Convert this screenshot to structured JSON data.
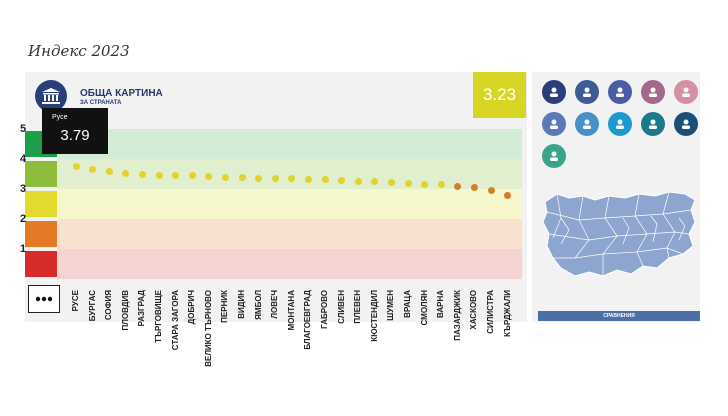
{
  "page": {
    "title": "Индекс 2023"
  },
  "header": {
    "title": "ОБЩА КАРТИНА",
    "subtitle": "ЗА СТРАНАТА",
    "score": "3.23"
  },
  "tooltip": {
    "label": "Русе",
    "value": "3.79"
  },
  "axis": {
    "ticks": [
      "5",
      "4",
      "3",
      "2",
      "1"
    ],
    "colors": [
      "#1f9e4a",
      "#8dbd3b",
      "#e2da2c",
      "#e37a25",
      "#d82c2c"
    ],
    "band_colors": [
      "#d4ecd6",
      "#e1efcf",
      "#f7f7cd",
      "#f9e1cf",
      "#f6d3d3"
    ]
  },
  "chart_data": {
    "type": "scatter",
    "title": "ОБЩА КАРТИНА",
    "ylim": [
      0,
      5
    ],
    "categories": [
      "РУСЕ",
      "БУРГАС",
      "СОФИЯ",
      "ПЛОВДИВ",
      "РАЗГРАД",
      "ТЪРГОВИЩЕ",
      "СТАРА ЗАГОРА",
      "ДОБРИЧ",
      "ВЕЛИКО ТЪРНОВО",
      "ПЕРНИК",
      "ВИДИН",
      "ЯМБОЛ",
      "ЛОВЕЧ",
      "МОНТАНА",
      "БЛАГОЕВГРАД",
      "ГАБРОВО",
      "СЛИВЕН",
      "ПЛЕВЕН",
      "КЮСТЕНДИЛ",
      "ШУМЕН",
      "ВРАЦА",
      "СМОЛЯН",
      "ВАРНА",
      "ПАЗАРДЖИК",
      "ХАСКОВО",
      "СИЛИСТРА",
      "КЪРДЖАЛИ"
    ],
    "values": [
      3.79,
      3.69,
      3.62,
      3.56,
      3.53,
      3.49,
      3.48,
      3.47,
      3.44,
      3.42,
      3.41,
      3.39,
      3.38,
      3.37,
      3.35,
      3.34,
      3.31,
      3.3,
      3.28,
      3.26,
      3.22,
      3.2,
      3.19,
      3.12,
      3.1,
      2.98,
      2.83
    ]
  },
  "more_button": {
    "icon": "ellipsis-icon"
  },
  "categories_panel": {
    "icons": [
      {
        "name": "institution-icon",
        "color": "#2a3f7a"
      },
      {
        "name": "people-icon",
        "color": "#3d5b94"
      },
      {
        "name": "person-icon",
        "color": "#4b5ca8"
      },
      {
        "name": "podium-icon",
        "color": "#a5688c"
      },
      {
        "name": "coins-icon",
        "color": "#d690a4"
      },
      {
        "name": "gavel-icon",
        "color": "#5a79b8"
      },
      {
        "name": "police-icon",
        "color": "#4790c8"
      },
      {
        "name": "briefcase-icon",
        "color": "#1b9ad0"
      },
      {
        "name": "microphone-icon",
        "color": "#1a7a8c"
      },
      {
        "name": "group-icon",
        "color": "#1b4f78"
      },
      {
        "name": "hands-icon",
        "color": "#3aa38c"
      }
    ]
  },
  "compare_button": {
    "label": "СРАВНЕНИЯ"
  }
}
